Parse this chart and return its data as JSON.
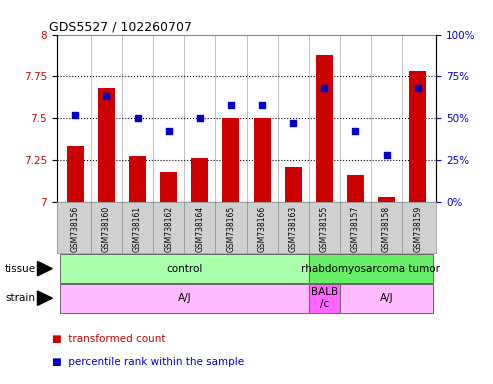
{
  "title": "GDS5527 / 102260707",
  "samples": [
    "GSM738156",
    "GSM738160",
    "GSM738161",
    "GSM738162",
    "GSM738164",
    "GSM738165",
    "GSM738166",
    "GSM738163",
    "GSM738155",
    "GSM738157",
    "GSM738158",
    "GSM738159"
  ],
  "transformed_counts": [
    7.33,
    7.68,
    7.27,
    7.18,
    7.26,
    7.5,
    7.5,
    7.21,
    7.88,
    7.16,
    7.03,
    7.78
  ],
  "percentile_ranks": [
    52,
    63,
    50,
    42,
    50,
    58,
    58,
    47,
    68,
    42,
    28,
    68
  ],
  "ylim_left": [
    7.0,
    8.0
  ],
  "ylim_right": [
    0,
    100
  ],
  "yticks_left": [
    7.0,
    7.25,
    7.5,
    7.75,
    8.0
  ],
  "yticks_right": [
    0,
    25,
    50,
    75,
    100
  ],
  "bar_color": "#cc0000",
  "dot_color": "#0000cc",
  "bar_bottom": 7.0,
  "tissue_groups": [
    {
      "label": "control",
      "start": 0,
      "end": 8,
      "color": "#aaffaa"
    },
    {
      "label": "rhabdomyosarcoma tumor",
      "start": 8,
      "end": 12,
      "color": "#66ee66"
    }
  ],
  "strain_groups": [
    {
      "label": "A/J",
      "start": 0,
      "end": 8,
      "color": "#ffbbff"
    },
    {
      "label": "BALB\n/c",
      "start": 8,
      "end": 9,
      "color": "#ff66ff"
    },
    {
      "label": "A/J",
      "start": 9,
      "end": 12,
      "color": "#ffbbff"
    }
  ],
  "legend_items": [
    {
      "color": "#cc0000",
      "label": "transformed count"
    },
    {
      "color": "#0000cc",
      "label": "percentile rank within the sample"
    }
  ],
  "grid_color": "#555555",
  "tick_color_left": "#cc0000",
  "tick_color_right": "#0000cc",
  "bg_color": "#ffffff",
  "label_bg": "#d0d0d0"
}
